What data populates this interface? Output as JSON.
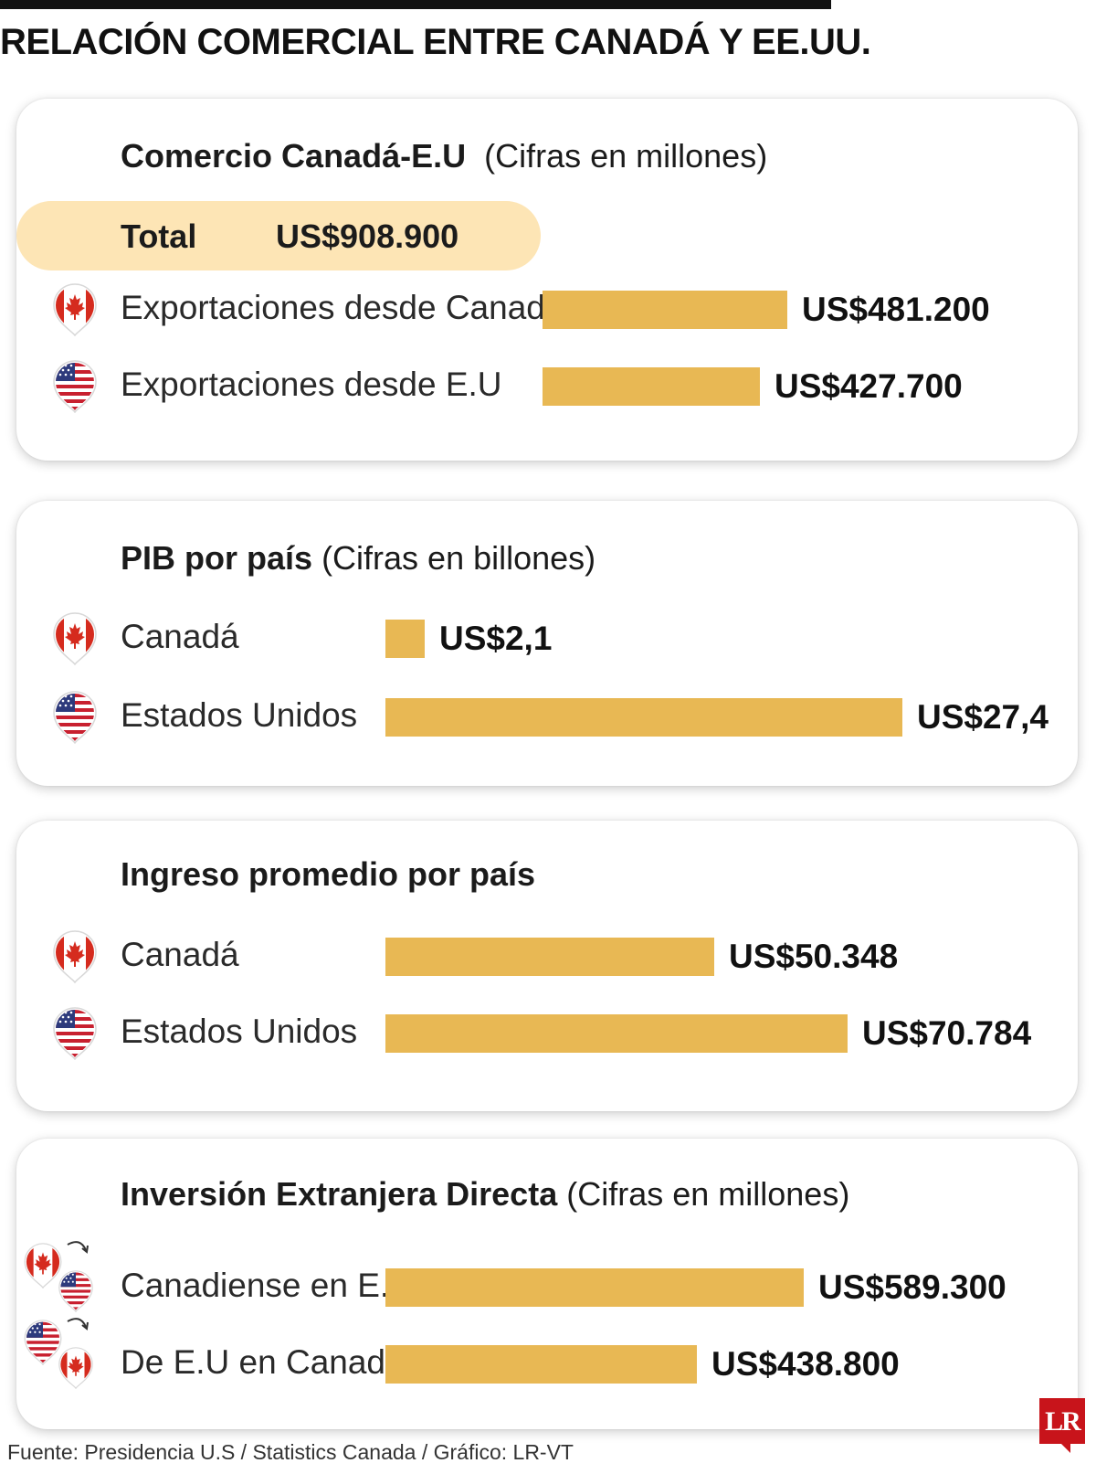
{
  "title": "RELACIÓN COMERCIAL ENTRE CANADÁ Y EE.UU.",
  "colors": {
    "bar": "#e8b854",
    "highlight": "#fde5b5",
    "brand": "#c8141b"
  },
  "sections": [
    {
      "title_bold": "Comercio Canadá-E.U",
      "title_rest": "(Cifras en millones)",
      "total_label": "Total",
      "total_value": "US$908.900",
      "rows": [
        {
          "label": "Exportaciones desde Canadá",
          "flag": "canada-flag-icon",
          "value": 481200,
          "value_label": "US$481.200"
        },
        {
          "label": "Exportaciones desde E.U",
          "flag": "usa-flag-icon",
          "value": 427700,
          "value_label": "US$427.700"
        }
      ]
    },
    {
      "title_bold": "PIB por país",
      "title_rest": "(Cifras en billones)",
      "rows": [
        {
          "label": "Canadá",
          "flag": "canada-flag-icon",
          "value": 2.1,
          "value_label": "US$2,1"
        },
        {
          "label": "Estados Unidos",
          "flag": "usa-flag-icon",
          "value": 27.4,
          "value_label": "US$27,4"
        }
      ]
    },
    {
      "title_bold": "Ingreso promedio por país",
      "title_rest": "",
      "rows": [
        {
          "label": "Canadá",
          "flag": "canada-flag-icon",
          "value": 50348,
          "value_label": "US$50.348"
        },
        {
          "label": "Estados Unidos",
          "flag": "usa-flag-icon",
          "value": 70784,
          "value_label": "US$70.784"
        }
      ]
    },
    {
      "title_bold": "Inversión Extranjera Directa",
      "title_rest": "(Cifras en millones)",
      "rows": [
        {
          "label": "Canadiense en E.U",
          "flag": "canada-to-usa-icon",
          "value": 589300,
          "value_label": "US$589.300"
        },
        {
          "label": "De E.U en Canadá",
          "flag": "usa-to-canada-icon",
          "value": 438800,
          "value_label": "US$438.800"
        }
      ]
    }
  ],
  "source": "Fuente: Presidencia U.S / Statistics Canada / Gráfico: LR-VT",
  "logo": "LR",
  "chart_data": [
    {
      "type": "bar",
      "title": "Comercio Canadá-E.U (Cifras en millones)",
      "categories": [
        "Exportaciones desde Canadá",
        "Exportaciones desde E.U"
      ],
      "values": [
        481200,
        427700
      ],
      "total": 908900,
      "xlabel": "",
      "ylabel": ""
    },
    {
      "type": "bar",
      "title": "PIB por país (Cifras en billones)",
      "categories": [
        "Canadá",
        "Estados Unidos"
      ],
      "values": [
        2.1,
        27.4
      ],
      "xlabel": "",
      "ylabel": ""
    },
    {
      "type": "bar",
      "title": "Ingreso promedio por país",
      "categories": [
        "Canadá",
        "Estados Unidos"
      ],
      "values": [
        50348,
        70784
      ],
      "xlabel": "",
      "ylabel": ""
    },
    {
      "type": "bar",
      "title": "Inversión Extranjera Directa (Cifras en millones)",
      "categories": [
        "Canadiense en E.U",
        "De E.U en Canadá"
      ],
      "values": [
        589300,
        438800
      ],
      "xlabel": "",
      "ylabel": ""
    }
  ]
}
